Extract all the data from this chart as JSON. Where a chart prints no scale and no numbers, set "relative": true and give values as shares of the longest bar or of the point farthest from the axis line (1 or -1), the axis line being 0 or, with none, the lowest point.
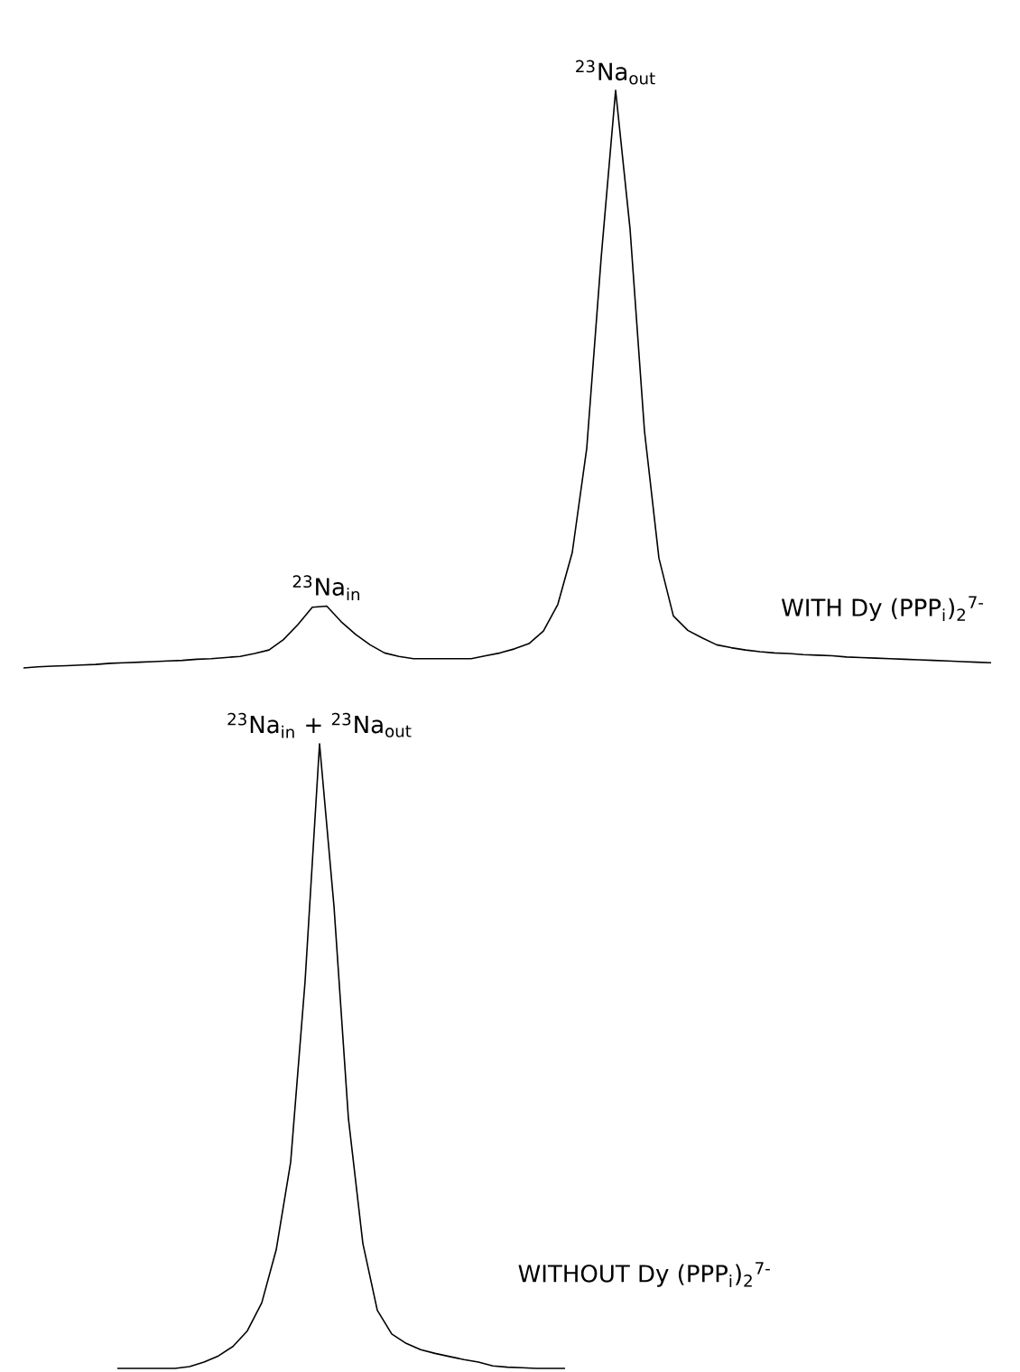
{
  "chart_data": [
    {
      "type": "line",
      "relative": true,
      "categories": [
        null,
        null,
        null,
        null,
        null,
        null,
        null,
        null,
        null,
        null,
        null,
        null,
        null,
        null,
        null,
        null,
        null,
        null,
        null,
        null,
        null,
        null,
        null,
        null,
        null,
        null,
        null,
        null,
        null,
        null,
        null,
        null,
        null,
        null,
        null,
        null,
        null,
        null,
        null,
        null,
        null,
        null,
        null,
        null,
        null,
        null,
        null,
        null,
        null,
        null,
        null,
        null,
        null,
        null,
        null,
        null,
        null,
        null,
        null,
        null,
        null,
        null,
        null,
        null,
        null,
        null,
        null,
        null
      ],
      "series": [
        {
          "name": "WITH Dy (PPP$_{i}$)$_{2}$$^{7-}$",
          "color": "#000000",
          "values": [
            0,
            0.002,
            0.003,
            0.004,
            0.005,
            0.006,
            0.008,
            0.009,
            0.01,
            0.011,
            0.012,
            0.013,
            0.015,
            0.016,
            0.018,
            0.02,
            0.025,
            0.031,
            0.049,
            0.075,
            0.105,
            0.107,
            0.08,
            0.058,
            0.04,
            0.026,
            0.02,
            0.016,
            0.016,
            0.016,
            0.016,
            0.016,
            0.021,
            0.026,
            0.033,
            0.042,
            0.064,
            0.11,
            0.2,
            0.38,
            0.71,
            1,
            0.76,
            0.41,
            0.19,
            0.09,
            0.065,
            0.052,
            0.04,
            0.035,
            0.031,
            0.028,
            0.026,
            0.025,
            0.023,
            0.022,
            0.021,
            0.019,
            0.018,
            0.017,
            0.016,
            0.015,
            0.014,
            0.013,
            0.012,
            0.011,
            0.01,
            0.009
          ]
        }
      ],
      "annotations": [
        {
          "text": "$^{23}$Na$_{in}$",
          "y": 0.107
        },
        {
          "text": "$^{23}$Na$_{out}$",
          "y": 1
        }
      ]
    },
    {
      "type": "line",
      "relative": true,
      "categories": [
        null,
        null,
        null,
        null,
        null,
        null,
        null,
        null,
        null,
        null,
        null,
        null,
        null,
        null,
        null,
        null,
        null,
        null,
        null,
        null,
        null,
        null,
        null,
        null,
        null,
        null,
        null,
        null,
        null,
        null,
        null,
        null
      ],
      "series": [
        {
          "name": "WITHOUT Dy (PPP$_{i}$)$_{2}$$^{7-}$",
          "color": "#000000",
          "values": [
            0,
            0,
            0,
            0,
            0,
            0.003,
            0.01,
            0.02,
            0.035,
            0.06,
            0.105,
            0.19,
            0.33,
            0.62,
            1,
            0.74,
            0.4,
            0.2,
            0.093,
            0.055,
            0.04,
            0.03,
            0.024,
            0.019,
            0.014,
            0.01,
            0.004,
            0.002,
            0.001,
            0,
            0,
            0
          ]
        }
      ],
      "annotations": [
        {
          "text": "$^{23}$Na$_{in}$ + $^{23}$Na$_{out}$",
          "y": 1
        }
      ]
    }
  ]
}
